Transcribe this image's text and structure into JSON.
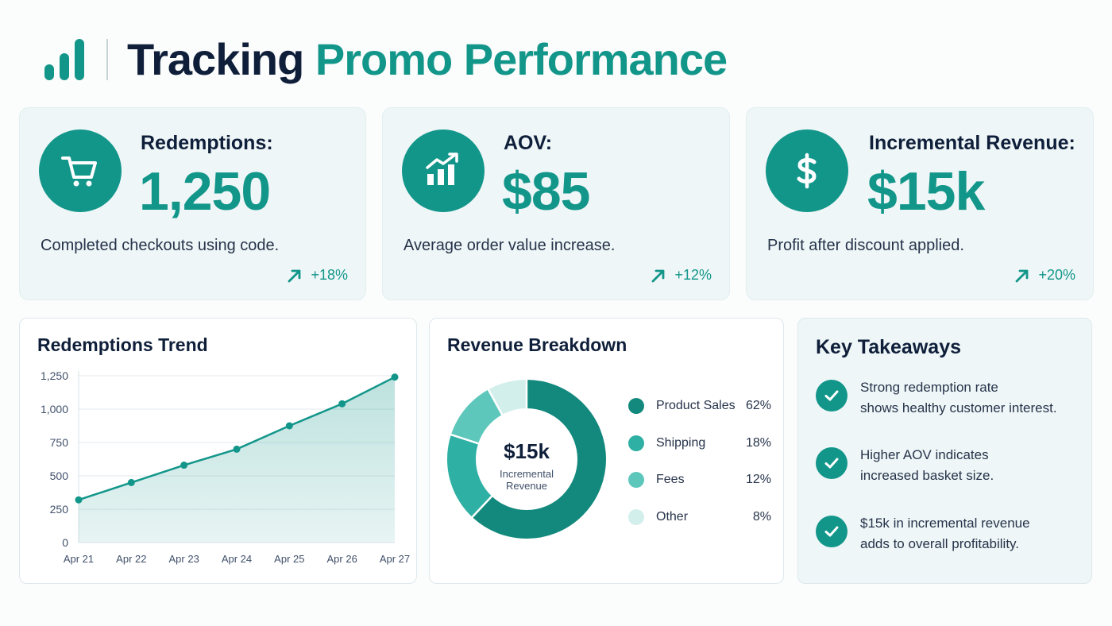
{
  "header": {
    "title_part1": "Tracking",
    "title_part2": "Promo Performance",
    "logo_icon": "bar-chart-icon"
  },
  "kpis": [
    {
      "icon": "shopping-cart-icon",
      "label": "Redemptions:",
      "value": "1,250",
      "description": "Completed checkouts using code.",
      "change": "+18%"
    },
    {
      "icon": "rising-bar-chart-icon",
      "label": "AOV:",
      "value": "$85",
      "description": "Average order value increase.",
      "change": "+12%"
    },
    {
      "icon": "dollar-icon",
      "label": "Incremental Revenue:",
      "value": "$15k",
      "description": "Profit after discount applied.",
      "change": "+20%"
    }
  ],
  "trend": {
    "title": "Redemptions Trend"
  },
  "breakdown": {
    "title": "Revenue Breakdown",
    "center_value": "$15k",
    "center_label": "Incremental Revenue"
  },
  "takeaways": {
    "title": "Key Takeaways",
    "items": [
      {
        "line1": "Strong redemption rate",
        "line2": "shows healthy customer interest."
      },
      {
        "line1": "Higher AOV indicates",
        "line2": "increased basket size."
      },
      {
        "line1": "$15k in incremental revenue",
        "line2": "adds to overall profitability."
      }
    ]
  },
  "colors": {
    "brand": "#13968a",
    "dark": "#0f1f3a",
    "slices": [
      "#13897d",
      "#2fb0a4",
      "#5ec7bc",
      "#d3efec"
    ]
  },
  "chart_data": [
    {
      "type": "area",
      "title": "Redemptions Trend",
      "categories": [
        "Apr 21",
        "Apr 22",
        "Apr 23",
        "Apr 24",
        "Apr 25",
        "Apr 26",
        "Apr 27"
      ],
      "values": [
        320,
        450,
        580,
        700,
        875,
        1040,
        1240
      ],
      "ylim": [
        0,
        1250
      ],
      "yticks": [
        "0",
        "250",
        "500",
        "750",
        "1,000",
        "1,250"
      ],
      "ytick_values": [
        0,
        250,
        500,
        750,
        1000,
        1250
      ],
      "grid": true
    },
    {
      "type": "pie",
      "title": "Revenue Breakdown",
      "categories": [
        "Product Sales",
        "Shipping",
        "Fees",
        "Other"
      ],
      "values": [
        62,
        18,
        12,
        8
      ],
      "labels": [
        "62%",
        "18%",
        "12%",
        "8%"
      ],
      "legend": "right"
    }
  ]
}
